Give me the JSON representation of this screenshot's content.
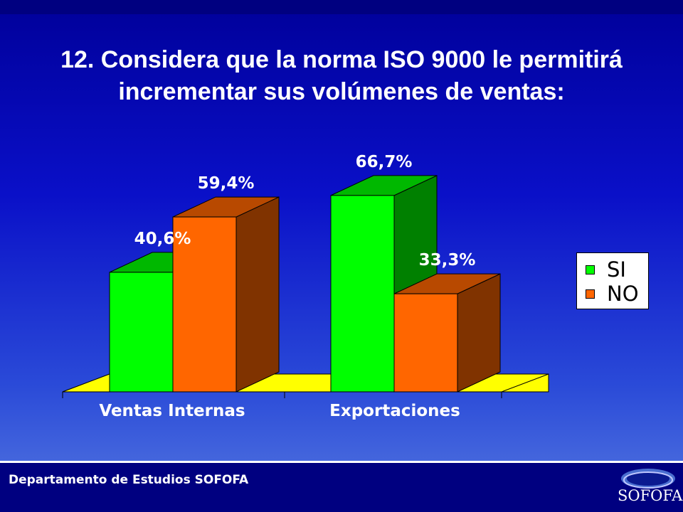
{
  "slide": {
    "title": "12. Considera que  la norma ISO  9000  le permitirá incrementar sus volúmenes de ventas:"
  },
  "footer": {
    "text": "Departamento de Estudios SOFOFA",
    "logo_text": "SOFOFA"
  },
  "colors": {
    "si": "#00ff00",
    "no": "#ff6600",
    "floor": "#ffff00",
    "title": "#ffffff"
  },
  "chart_data": {
    "type": "bar",
    "style": "3d-clustered",
    "categories": [
      "Ventas Internas",
      "Exportaciones"
    ],
    "series": [
      {
        "name": "SI",
        "values": [
          40.6,
          66.7
        ],
        "labels": [
          "40,6%",
          "66,7%"
        ]
      },
      {
        "name": "NO",
        "values": [
          59.4,
          33.3
        ],
        "labels": [
          "59,4%",
          "33,3%"
        ]
      }
    ],
    "ylim": [
      0,
      100
    ],
    "grid": false,
    "legend_position": "right"
  }
}
